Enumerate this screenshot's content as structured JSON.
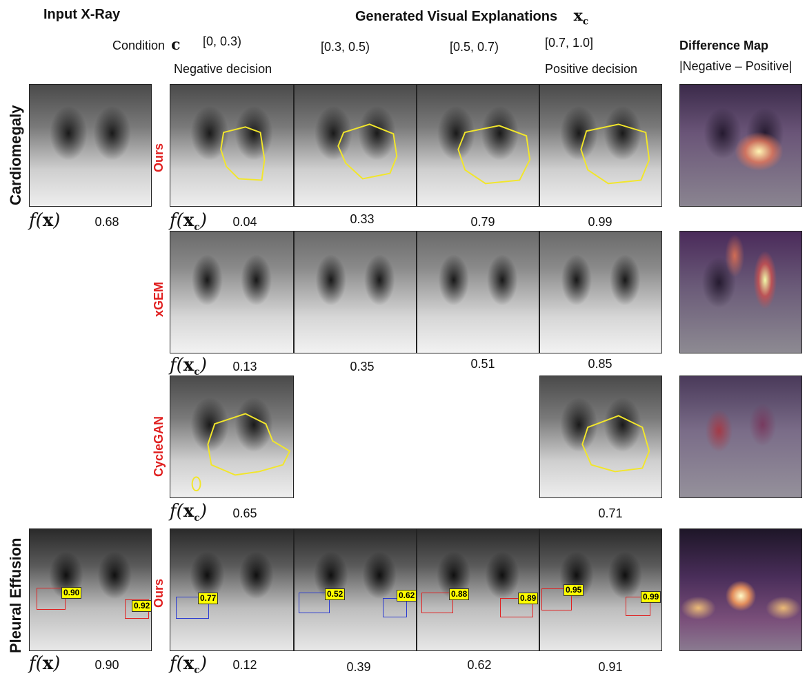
{
  "headers": {
    "input_xray": "Input X-Ray",
    "generated": "Generated Visual Explanations",
    "xc_symbol": "x",
    "xc_sub": "c",
    "condition_label": "Condition",
    "condition_symbol": "c",
    "diff_map": "Difference Map",
    "diff_formula": "|Negative – Positive|"
  },
  "conditions": [
    "[0, 0.3)",
    "[0.3, 0.5)",
    "[0.5, 0.7)",
    "[0.7, 1.0]"
  ],
  "decisions": {
    "negative": "Negative decision",
    "positive": "Positive decision"
  },
  "fx_label": {
    "f": "f",
    "x": "x",
    "xc_sub": "c"
  },
  "row_labels": {
    "cardiomegaly": "Cardiomegaly",
    "pleural": "Pleural Effusion"
  },
  "methods": {
    "ours": "Ours",
    "xgem": "xGEM",
    "cyclegan": "CycleGAN",
    "ours2": "Ours"
  },
  "scores": {
    "input_cardio": "0.68",
    "ours": [
      "0.04",
      "0.33",
      "0.79",
      "0.99"
    ],
    "xgem": [
      "0.13",
      "0.35",
      "0.51",
      "0.85"
    ],
    "cyclegan": [
      "0.65",
      "0.71"
    ],
    "input_pleural": "0.90",
    "ours_pleural": [
      "0.12",
      "0.39",
      "0.62",
      "0.91"
    ]
  },
  "box_tags": {
    "input": [
      "0.90",
      "0.92"
    ],
    "c1": [
      "0.77"
    ],
    "c2": [
      "0.52",
      "0.62"
    ],
    "c3": [
      "0.88",
      "0.89"
    ],
    "c4": [
      "0.95",
      "0.99"
    ]
  },
  "colors": {
    "red_label": "#e02020",
    "outline": "#f2e62a",
    "box_red": "#e02020",
    "box_blue": "#2a3ad0",
    "tag": "#ffff00"
  }
}
